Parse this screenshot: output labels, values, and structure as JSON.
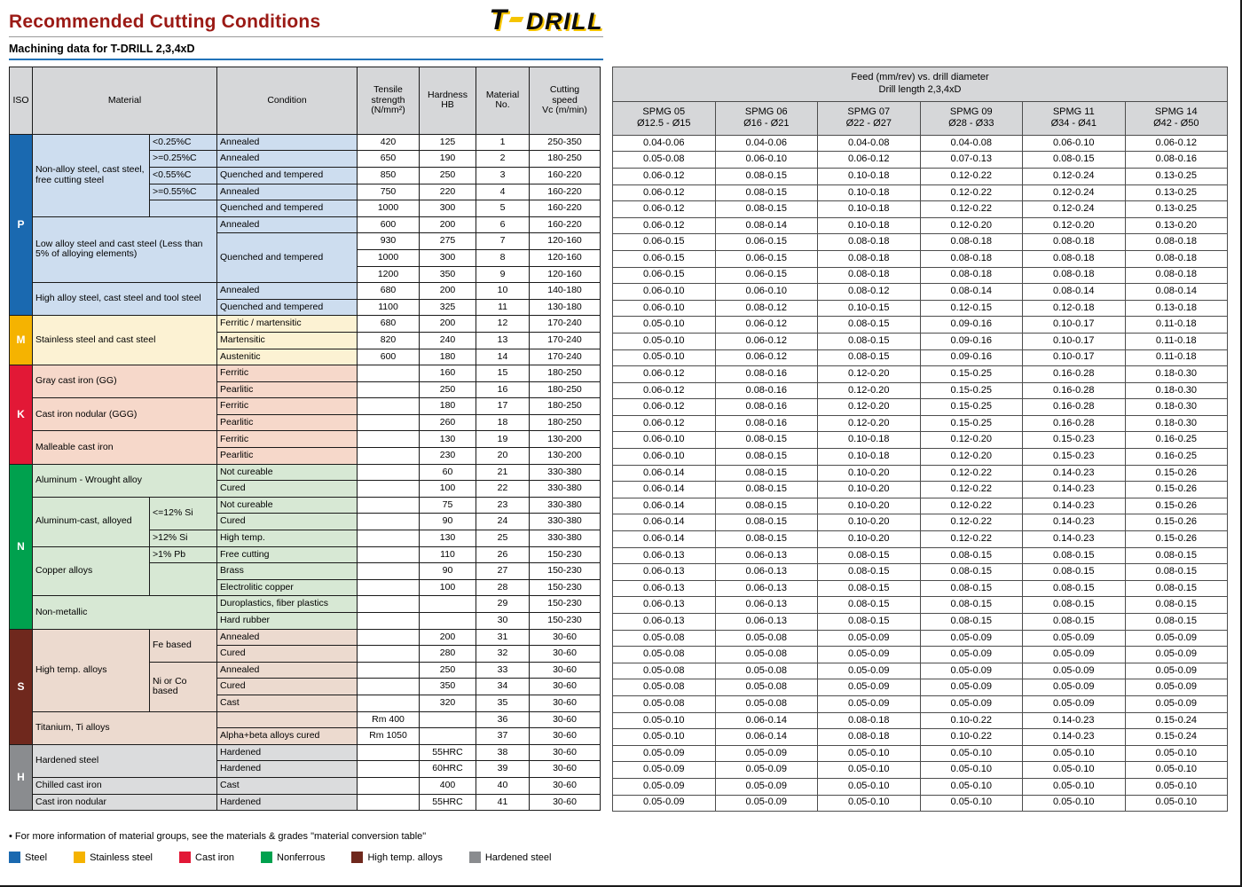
{
  "header": {
    "title": "Recommended Cutting Conditions",
    "logo_t": "T",
    "logo_drill": "DRILL",
    "subtitle": "Machining data for T-DRILL 2,3,4xD"
  },
  "left_table": {
    "headers": {
      "iso": "ISO",
      "material": "Material",
      "condition": "Condition",
      "tensile": "Tensile\nstrength\n(N/mm²)",
      "hardness": "Hardness\nHB",
      "no": "Material\nNo.",
      "speed": "Cutting\nspeed\nVc (m/min)"
    },
    "iso_groups": [
      {
        "label": "P",
        "start": 1,
        "count": 11,
        "color": "#1a69b0",
        "tint": "#cdddef"
      },
      {
        "label": "M",
        "start": 12,
        "count": 3,
        "color": "#f5b301",
        "tint": "#fcf2d3"
      },
      {
        "label": "K",
        "start": 15,
        "count": 6,
        "color": "#e21836",
        "tint": "#f6d8ca"
      },
      {
        "label": "N",
        "start": 21,
        "count": 10,
        "color": "#00a14e",
        "tint": "#d7e8d4"
      },
      {
        "label": "S",
        "start": 31,
        "count": 7,
        "color": "#6f281d",
        "tint": "#ecdacf"
      },
      {
        "label": "H",
        "start": 38,
        "count": 4,
        "color": "#8a8c8f",
        "tint": "#dbdcdd"
      }
    ],
    "material_groups": [
      {
        "label": "Non-alloy steel, cast steel, free cutting steel",
        "start": 1,
        "count": 5,
        "colspan": 1
      },
      {
        "label": "Low alloy steel and cast steel (Less than 5% of alloying elements)",
        "start": 6,
        "count": 4,
        "colspan": 2
      },
      {
        "label": "High alloy steel, cast steel and tool steel",
        "start": 10,
        "count": 2,
        "colspan": 2
      },
      {
        "label": "Stainless steel and cast steel",
        "start": 12,
        "count": 3,
        "colspan": 2
      },
      {
        "label": "Gray cast iron (GG)",
        "start": 15,
        "count": 2,
        "colspan": 2
      },
      {
        "label": "Cast iron nodular (GGG)",
        "start": 17,
        "count": 2,
        "colspan": 2
      },
      {
        "label": "Malleable cast iron",
        "start": 19,
        "count": 2,
        "colspan": 2
      },
      {
        "label": "Aluminum - Wrought alloy",
        "start": 21,
        "count": 2,
        "colspan": 2
      },
      {
        "label": "Aluminum-cast, alloyed",
        "start": 23,
        "count": 3,
        "colspan": 1
      },
      {
        "label": "Copper alloys",
        "start": 26,
        "count": 3,
        "colspan": 1
      },
      {
        "label": "Non-metallic",
        "start": 29,
        "count": 2,
        "colspan": 2
      },
      {
        "label": "High temp. alloys",
        "start": 31,
        "count": 5,
        "colspan": 1
      },
      {
        "label": "Titanium, Ti alloys",
        "start": 36,
        "count": 2,
        "colspan": 2
      },
      {
        "label": "Hardened steel",
        "start": 38,
        "count": 2,
        "colspan": 2
      },
      {
        "label": "Chilled cast iron",
        "start": 40,
        "count": 1,
        "colspan": 2
      },
      {
        "label": "Cast iron nodular",
        "start": 41,
        "count": 1,
        "colspan": 2
      }
    ],
    "sub_cells": [
      {
        "label": "<0.25%C",
        "start": 1,
        "count": 1
      },
      {
        "label": ">=0.25%C",
        "start": 2,
        "count": 1
      },
      {
        "label": "<0.55%C",
        "start": 3,
        "count": 1
      },
      {
        "label": ">=0.55%C",
        "start": 4,
        "count": 1
      },
      {
        "label": "",
        "start": 5,
        "count": 1
      },
      {
        "label": "<=12% Si",
        "start": 23,
        "count": 2
      },
      {
        "label": ">12% Si",
        "start": 25,
        "count": 1
      },
      {
        "label": ">1% Pb",
        "start": 26,
        "count": 1
      },
      {
        "label": "",
        "start": 27,
        "count": 2
      },
      {
        "label": "Fe based",
        "start": 31,
        "count": 2
      },
      {
        "label": "Ni or Co based",
        "start": 33,
        "count": 3
      }
    ],
    "condition_cells": [
      {
        "label": "Annealed",
        "start": 1,
        "count": 1
      },
      {
        "label": "Annealed",
        "start": 2,
        "count": 1
      },
      {
        "label": "Quenched and tempered",
        "start": 3,
        "count": 1
      },
      {
        "label": "Annealed",
        "start": 4,
        "count": 1
      },
      {
        "label": "Quenched and tempered",
        "start": 5,
        "count": 1
      },
      {
        "label": "Annealed",
        "start": 6,
        "count": 1
      },
      {
        "label": "Quenched and tempered",
        "start": 7,
        "count": 3
      },
      {
        "label": "Annealed",
        "start": 10,
        "count": 1
      },
      {
        "label": "Quenched and tempered",
        "start": 11,
        "count": 1
      },
      {
        "label": "Ferritic / martensitic",
        "start": 12,
        "count": 1
      },
      {
        "label": "Martensitic",
        "start": 13,
        "count": 1
      },
      {
        "label": "Austenitic",
        "start": 14,
        "count": 1
      },
      {
        "label": "Ferritic",
        "start": 15,
        "count": 1
      },
      {
        "label": "Pearlitic",
        "start": 16,
        "count": 1
      },
      {
        "label": "Ferritic",
        "start": 17,
        "count": 1
      },
      {
        "label": "Pearlitic",
        "start": 18,
        "count": 1
      },
      {
        "label": "Ferritic",
        "start": 19,
        "count": 1
      },
      {
        "label": "Pearlitic",
        "start": 20,
        "count": 1
      },
      {
        "label": "Not cureable",
        "start": 21,
        "count": 1
      },
      {
        "label": "Cured",
        "start": 22,
        "count": 1
      },
      {
        "label": "Not cureable",
        "start": 23,
        "count": 1
      },
      {
        "label": "Cured",
        "start": 24,
        "count": 1
      },
      {
        "label": "High temp.",
        "start": 25,
        "count": 1
      },
      {
        "label": "Free cutting",
        "start": 26,
        "count": 1
      },
      {
        "label": "Brass",
        "start": 27,
        "count": 1
      },
      {
        "label": "Electrolitic copper",
        "start": 28,
        "count": 1
      },
      {
        "label": "Duroplastics, fiber plastics",
        "start": 29,
        "count": 1
      },
      {
        "label": "Hard rubber",
        "start": 30,
        "count": 1
      },
      {
        "label": "Annealed",
        "start": 31,
        "count": 1
      },
      {
        "label": "Cured",
        "start": 32,
        "count": 1
      },
      {
        "label": "Annealed",
        "start": 33,
        "count": 1
      },
      {
        "label": "Cured",
        "start": 34,
        "count": 1
      },
      {
        "label": "Cast",
        "start": 35,
        "count": 1
      },
      {
        "label": "",
        "start": 36,
        "count": 1
      },
      {
        "label": "Alpha+beta alloys cured",
        "start": 37,
        "count": 1
      },
      {
        "label": "Hardened",
        "start": 38,
        "count": 1
      },
      {
        "label": "Hardened",
        "start": 39,
        "count": 1
      },
      {
        "label": "Cast",
        "start": 40,
        "count": 1
      },
      {
        "label": "Hardened",
        "start": 41,
        "count": 1
      }
    ],
    "rows": [
      [
        "420",
        "125",
        "1",
        "250-350"
      ],
      [
        "650",
        "190",
        "2",
        "180-250"
      ],
      [
        "850",
        "250",
        "3",
        "160-220"
      ],
      [
        "750",
        "220",
        "4",
        "160-220"
      ],
      [
        "1000",
        "300",
        "5",
        "160-220"
      ],
      [
        "600",
        "200",
        "6",
        "160-220"
      ],
      [
        "930",
        "275",
        "7",
        "120-160"
      ],
      [
        "1000",
        "300",
        "8",
        "120-160"
      ],
      [
        "1200",
        "350",
        "9",
        "120-160"
      ],
      [
        "680",
        "200",
        "10",
        "140-180"
      ],
      [
        "1100",
        "325",
        "11",
        "130-180"
      ],
      [
        "680",
        "200",
        "12",
        "170-240"
      ],
      [
        "820",
        "240",
        "13",
        "170-240"
      ],
      [
        "600",
        "180",
        "14",
        "170-240"
      ],
      [
        "",
        "160",
        "15",
        "180-250"
      ],
      [
        "",
        "250",
        "16",
        "180-250"
      ],
      [
        "",
        "180",
        "17",
        "180-250"
      ],
      [
        "",
        "260",
        "18",
        "180-250"
      ],
      [
        "",
        "130",
        "19",
        "130-200"
      ],
      [
        "",
        "230",
        "20",
        "130-200"
      ],
      [
        "",
        "60",
        "21",
        "330-380"
      ],
      [
        "",
        "100",
        "22",
        "330-380"
      ],
      [
        "",
        "75",
        "23",
        "330-380"
      ],
      [
        "",
        "90",
        "24",
        "330-380"
      ],
      [
        "",
        "130",
        "25",
        "330-380"
      ],
      [
        "",
        "110",
        "26",
        "150-230"
      ],
      [
        "",
        "90",
        "27",
        "150-230"
      ],
      [
        "",
        "100",
        "28",
        "150-230"
      ],
      [
        "",
        "",
        "29",
        "150-230"
      ],
      [
        "",
        "",
        "30",
        "150-230"
      ],
      [
        "",
        "200",
        "31",
        "30-60"
      ],
      [
        "",
        "280",
        "32",
        "30-60"
      ],
      [
        "",
        "250",
        "33",
        "30-60"
      ],
      [
        "",
        "350",
        "34",
        "30-60"
      ],
      [
        "",
        "320",
        "35",
        "30-60"
      ],
      [
        "Rm 400",
        "",
        "36",
        "30-60"
      ],
      [
        "Rm 1050",
        "",
        "37",
        "30-60"
      ],
      [
        "",
        "55HRC",
        "38",
        "30-60"
      ],
      [
        "",
        "60HRC",
        "39",
        "30-60"
      ],
      [
        "",
        "400",
        "40",
        "30-60"
      ],
      [
        "",
        "55HRC",
        "41",
        "30-60"
      ]
    ]
  },
  "right_table": {
    "title_line1": "Feed (mm/rev) vs. drill diameter",
    "title_line2": "Drill length 2,3,4xD",
    "columns": [
      {
        "name": "SPMG 05",
        "range": "Ø12.5 - Ø15"
      },
      {
        "name": "SPMG 06",
        "range": "Ø16 - Ø21"
      },
      {
        "name": "SPMG 07",
        "range": "Ø22 - Ø27"
      },
      {
        "name": "SPMG 09",
        "range": "Ø28 - Ø33"
      },
      {
        "name": "SPMG 11",
        "range": "Ø34 - Ø41"
      },
      {
        "name": "SPMG 14",
        "range": "Ø42 - Ø50"
      }
    ],
    "rows": [
      [
        "0.04-0.06",
        "0.04-0.06",
        "0.04-0.08",
        "0.04-0.08",
        "0.06-0.10",
        "0.06-0.12"
      ],
      [
        "0.05-0.08",
        "0.06-0.10",
        "0.06-0.12",
        "0.07-0.13",
        "0.08-0.15",
        "0.08-0.16"
      ],
      [
        "0.06-0.12",
        "0.08-0.15",
        "0.10-0.18",
        "0.12-0.22",
        "0.12-0.24",
        "0.13-0.25"
      ],
      [
        "0.06-0.12",
        "0.08-0.15",
        "0.10-0.18",
        "0.12-0.22",
        "0.12-0.24",
        "0.13-0.25"
      ],
      [
        "0.06-0.12",
        "0.08-0.15",
        "0.10-0.18",
        "0.12-0.22",
        "0.12-0.24",
        "0.13-0.25"
      ],
      [
        "0.06-0.12",
        "0.08-0.14",
        "0.10-0.18",
        "0.12-0.20",
        "0.12-0.20",
        "0.13-0.20"
      ],
      [
        "0.06-0.15",
        "0.06-0.15",
        "0.08-0.18",
        "0.08-0.18",
        "0.08-0.18",
        "0.08-0.18"
      ],
      [
        "0.06-0.15",
        "0.06-0.15",
        "0.08-0.18",
        "0.08-0.18",
        "0.08-0.18",
        "0.08-0.18"
      ],
      [
        "0.06-0.15",
        "0.06-0.15",
        "0.08-0.18",
        "0.08-0.18",
        "0.08-0.18",
        "0.08-0.18"
      ],
      [
        "0.06-0.10",
        "0.06-0.10",
        "0.08-0.12",
        "0.08-0.14",
        "0.08-0.14",
        "0.08-0.14"
      ],
      [
        "0.06-0.10",
        "0.08-0.12",
        "0.10-0.15",
        "0.12-0.15",
        "0.12-0.18",
        "0.13-0.18"
      ],
      [
        "0.05-0.10",
        "0.06-0.12",
        "0.08-0.15",
        "0.09-0.16",
        "0.10-0.17",
        "0.11-0.18"
      ],
      [
        "0.05-0.10",
        "0.06-0.12",
        "0.08-0.15",
        "0.09-0.16",
        "0.10-0.17",
        "0.11-0.18"
      ],
      [
        "0.05-0.10",
        "0.06-0.12",
        "0.08-0.15",
        "0.09-0.16",
        "0.10-0.17",
        "0.11-0.18"
      ],
      [
        "0.06-0.12",
        "0.08-0.16",
        "0.12-0.20",
        "0.15-0.25",
        "0.16-0.28",
        "0.18-0.30"
      ],
      [
        "0.06-0.12",
        "0.08-0.16",
        "0.12-0.20",
        "0.15-0.25",
        "0.16-0.28",
        "0.18-0.30"
      ],
      [
        "0.06-0.12",
        "0.08-0.16",
        "0.12-0.20",
        "0.15-0.25",
        "0.16-0.28",
        "0.18-0.30"
      ],
      [
        "0.06-0.12",
        "0.08-0.16",
        "0.12-0.20",
        "0.15-0.25",
        "0.16-0.28",
        "0.18-0.30"
      ],
      [
        "0.06-0.10",
        "0.08-0.15",
        "0.10-0.18",
        "0.12-0.20",
        "0.15-0.23",
        "0.16-0.25"
      ],
      [
        "0.06-0.10",
        "0.08-0.15",
        "0.10-0.18",
        "0.12-0.20",
        "0.15-0.23",
        "0.16-0.25"
      ],
      [
        "0.06-0.14",
        "0.08-0.15",
        "0.10-0.20",
        "0.12-0.22",
        "0.14-0.23",
        "0.15-0.26"
      ],
      [
        "0.06-0.14",
        "0.08-0.15",
        "0.10-0.20",
        "0.12-0.22",
        "0.14-0.23",
        "0.15-0.26"
      ],
      [
        "0.06-0.14",
        "0.08-0.15",
        "0.10-0.20",
        "0.12-0.22",
        "0.14-0.23",
        "0.15-0.26"
      ],
      [
        "0.06-0.14",
        "0.08-0.15",
        "0.10-0.20",
        "0.12-0.22",
        "0.14-0.23",
        "0.15-0.26"
      ],
      [
        "0.06-0.14",
        "0.08-0.15",
        "0.10-0.20",
        "0.12-0.22",
        "0.14-0.23",
        "0.15-0.26"
      ],
      [
        "0.06-0.13",
        "0.06-0.13",
        "0.08-0.15",
        "0.08-0.15",
        "0.08-0.15",
        "0.08-0.15"
      ],
      [
        "0.06-0.13",
        "0.06-0.13",
        "0.08-0.15",
        "0.08-0.15",
        "0.08-0.15",
        "0.08-0.15"
      ],
      [
        "0.06-0.13",
        "0.06-0.13",
        "0.08-0.15",
        "0.08-0.15",
        "0.08-0.15",
        "0.08-0.15"
      ],
      [
        "0.06-0.13",
        "0.06-0.13",
        "0.08-0.15",
        "0.08-0.15",
        "0.08-0.15",
        "0.08-0.15"
      ],
      [
        "0.06-0.13",
        "0.06-0.13",
        "0.08-0.15",
        "0.08-0.15",
        "0.08-0.15",
        "0.08-0.15"
      ],
      [
        "0.05-0.08",
        "0.05-0.08",
        "0.05-0.09",
        "0.05-0.09",
        "0.05-0.09",
        "0.05-0.09"
      ],
      [
        "0.05-0.08",
        "0.05-0.08",
        "0.05-0.09",
        "0.05-0.09",
        "0.05-0.09",
        "0.05-0.09"
      ],
      [
        "0.05-0.08",
        "0.05-0.08",
        "0.05-0.09",
        "0.05-0.09",
        "0.05-0.09",
        "0.05-0.09"
      ],
      [
        "0.05-0.08",
        "0.05-0.08",
        "0.05-0.09",
        "0.05-0.09",
        "0.05-0.09",
        "0.05-0.09"
      ],
      [
        "0.05-0.08",
        "0.05-0.08",
        "0.05-0.09",
        "0.05-0.09",
        "0.05-0.09",
        "0.05-0.09"
      ],
      [
        "0.05-0.10",
        "0.06-0.14",
        "0.08-0.18",
        "0.10-0.22",
        "0.14-0.23",
        "0.15-0.24"
      ],
      [
        "0.05-0.10",
        "0.06-0.14",
        "0.08-0.18",
        "0.10-0.22",
        "0.14-0.23",
        "0.15-0.24"
      ],
      [
        "0.05-0.09",
        "0.05-0.09",
        "0.05-0.10",
        "0.05-0.10",
        "0.05-0.10",
        "0.05-0.10"
      ],
      [
        "0.05-0.09",
        "0.05-0.09",
        "0.05-0.10",
        "0.05-0.10",
        "0.05-0.10",
        "0.05-0.10"
      ],
      [
        "0.05-0.09",
        "0.05-0.09",
        "0.05-0.10",
        "0.05-0.10",
        "0.05-0.10",
        "0.05-0.10"
      ],
      [
        "0.05-0.09",
        "0.05-0.09",
        "0.05-0.10",
        "0.05-0.10",
        "0.05-0.10",
        "0.05-0.10"
      ]
    ]
  },
  "footer": {
    "note": "• For more information of material groups, see the materials & grades \"material conversion table\"",
    "legend": [
      {
        "label": "Steel",
        "color": "#1a69b0"
      },
      {
        "label": "Stainless steel",
        "color": "#f5b301"
      },
      {
        "label": "Cast iron",
        "color": "#e21836"
      },
      {
        "label": "Nonferrous",
        "color": "#00a14e"
      },
      {
        "label": "High temp. alloys",
        "color": "#6f281d"
      },
      {
        "label": "Hardened steel",
        "color": "#8a8c8f"
      }
    ]
  }
}
